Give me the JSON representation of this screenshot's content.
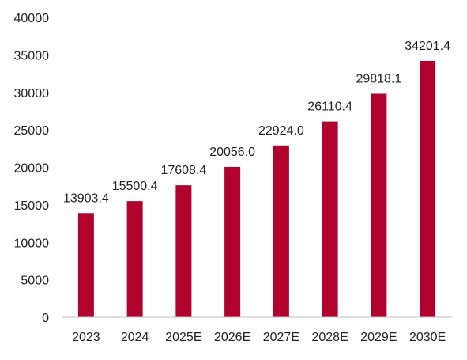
{
  "chart_data": {
    "type": "bar",
    "categories": [
      "2023",
      "2024",
      "2025E",
      "2026E",
      "2027E",
      "2028E",
      "2029E",
      "2030E"
    ],
    "values": [
      13903.4,
      15500.4,
      17608.4,
      20056.0,
      22924.0,
      26110.4,
      29818.1,
      34201.4
    ],
    "data_labels": [
      "13903.4",
      "15500.4",
      "17608.4",
      "20056.0",
      "22924.0",
      "26110.4",
      "29818.1",
      "34201.4"
    ],
    "ylim": [
      0,
      40000
    ],
    "yticks": [
      0,
      5000,
      10000,
      15000,
      20000,
      25000,
      30000,
      35000,
      40000
    ],
    "grid": false,
    "legend": "none",
    "colors": {
      "bar": "#b0022c",
      "axis": "#bfbfbf"
    }
  }
}
